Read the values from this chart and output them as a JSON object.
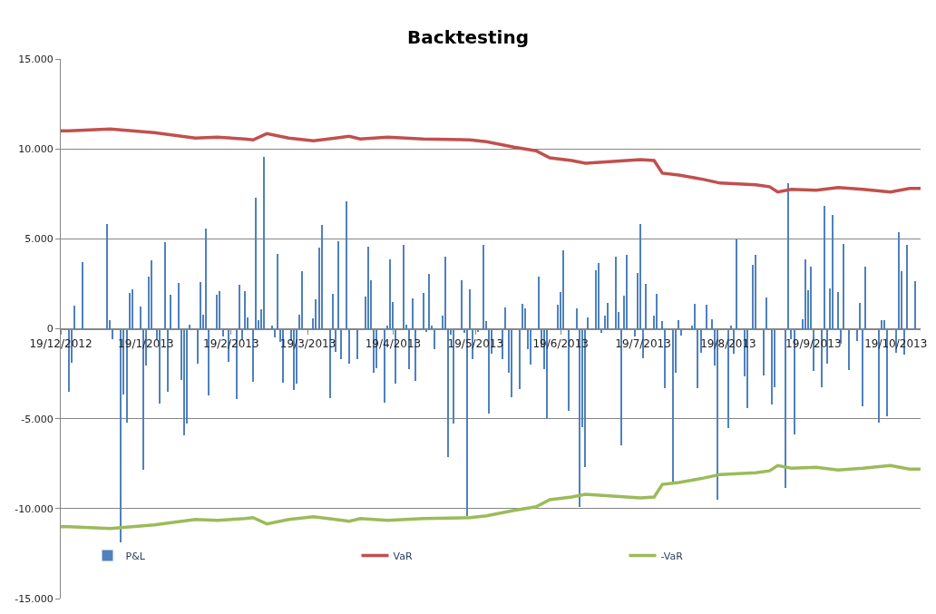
{
  "chart_data": {
    "type": "bar",
    "title": "Backtesting",
    "xlim": [
      "2012-12-19",
      "2013-10-28"
    ],
    "xticks": [
      {
        "value": "2012-12-19",
        "label": "19/12/2012"
      },
      {
        "value": "2013-01-19",
        "label": "19/1/2013"
      },
      {
        "value": "2013-02-19",
        "label": "19/2/2013"
      },
      {
        "value": "2013-03-19",
        "label": "19/3/2013"
      },
      {
        "value": "2013-04-19",
        "label": "19/4/2013"
      },
      {
        "value": "2013-05-19",
        "label": "19/5/2013"
      },
      {
        "value": "2013-06-19",
        "label": "19/6/2013"
      },
      {
        "value": "2013-07-19",
        "label": "19/7/2013"
      },
      {
        "value": "2013-08-19",
        "label": "19/8/2013"
      },
      {
        "value": "2013-09-19",
        "label": "19/9/2013"
      },
      {
        "value": "2013-10-19",
        "label": "19/10/2013"
      }
    ],
    "ylim": [
      -15000,
      15000
    ],
    "yticks": [
      {
        "value": -15000,
        "label": "-15.000"
      },
      {
        "value": -10000,
        "label": "-10.000"
      },
      {
        "value": -5000,
        "label": "-5.000"
      },
      0,
      {
        "value": 5000,
        "label": "5.000"
      },
      {
        "value": 10000,
        "label": "10.000"
      },
      {
        "value": 15000,
        "label": "15.000"
      }
    ],
    "grid": "y",
    "legend": "bottom",
    "series": [
      {
        "name": "P&L",
        "color": "#4f81bd",
        "x": [
          "2012-12-22",
          "2012-12-23",
          "2012-12-24",
          "2012-12-27",
          "2013-01-05",
          "2013-01-06",
          "2013-01-07",
          "2013-01-10",
          "2013-01-11",
          "2013-01-12",
          "2013-01-13",
          "2013-01-14",
          "2013-01-17",
          "2013-01-18",
          "2013-01-19",
          "2013-01-20",
          "2013-01-21",
          "2013-01-23",
          "2013-01-24",
          "2013-01-26",
          "2013-01-27",
          "2013-01-28",
          "2013-01-31",
          "2013-02-01",
          "2013-02-02",
          "2013-02-03",
          "2013-02-04",
          "2013-02-07",
          "2013-02-08",
          "2013-02-09",
          "2013-02-10",
          "2013-02-11",
          "2013-02-14",
          "2013-02-15",
          "2013-02-16",
          "2013-02-18",
          "2013-02-21",
          "2013-02-22",
          "2013-02-23",
          "2013-02-24",
          "2013-02-25",
          "2013-02-27",
          "2013-02-28",
          "2013-03-01",
          "2013-03-02",
          "2013-03-03",
          "2013-03-06",
          "2013-03-07",
          "2013-03-08",
          "2013-03-09",
          "2013-03-10",
          "2013-03-13",
          "2013-03-14",
          "2013-03-15",
          "2013-03-16",
          "2013-03-17",
          "2013-03-21",
          "2013-03-22",
          "2013-03-23",
          "2013-03-24",
          "2013-03-27",
          "2013-03-28",
          "2013-03-29",
          "2013-03-30",
          "2013-03-31",
          "2013-04-02",
          "2013-04-03",
          "2013-04-06",
          "2013-04-09",
          "2013-04-10",
          "2013-04-11",
          "2013-04-12",
          "2013-04-13",
          "2013-04-16",
          "2013-04-17",
          "2013-04-18",
          "2013-04-19",
          "2013-04-20",
          "2013-04-23",
          "2013-04-24",
          "2013-04-25",
          "2013-04-26",
          "2013-04-27",
          "2013-04-30",
          "2013-05-01",
          "2013-05-02",
          "2013-05-03",
          "2013-05-04",
          "2013-05-07",
          "2013-05-08",
          "2013-05-09",
          "2013-05-10",
          "2013-05-11",
          "2013-05-14",
          "2013-05-15",
          "2013-05-16",
          "2013-05-17",
          "2013-05-18",
          "2013-05-20",
          "2013-05-22",
          "2013-05-23",
          "2013-05-24",
          "2013-05-25",
          "2013-05-29",
          "2013-05-30",
          "2013-05-31",
          "2013-06-01",
          "2013-06-04",
          "2013-06-05",
          "2013-06-06",
          "2013-06-07",
          "2013-06-08",
          "2013-06-11",
          "2013-06-12",
          "2013-06-13",
          "2013-06-14",
          "2013-06-18",
          "2013-06-19",
          "2013-06-20",
          "2013-06-22",
          "2013-06-25",
          "2013-06-26",
          "2013-06-27",
          "2013-06-28",
          "2013-06-29",
          "2013-07-02",
          "2013-07-03",
          "2013-07-04",
          "2013-07-05",
          "2013-07-06",
          "2013-07-09",
          "2013-07-10",
          "2013-07-11",
          "2013-07-12",
          "2013-07-13",
          "2013-07-16",
          "2013-07-17",
          "2013-07-18",
          "2013-07-19",
          "2013-07-20",
          "2013-07-23",
          "2013-07-24",
          "2013-07-26",
          "2013-07-27",
          "2013-07-30",
          "2013-07-31",
          "2013-08-01",
          "2013-08-02",
          "2013-08-06",
          "2013-08-07",
          "2013-08-08",
          "2013-08-09",
          "2013-08-11",
          "2013-08-13",
          "2013-08-14",
          "2013-08-15",
          "2013-08-19",
          "2013-08-20",
          "2013-08-21",
          "2013-08-22",
          "2013-08-25",
          "2013-08-26",
          "2013-08-28",
          "2013-08-29",
          "2013-09-01",
          "2013-09-02",
          "2013-09-04",
          "2013-09-05",
          "2013-09-09",
          "2013-09-10",
          "2013-09-11",
          "2013-09-12",
          "2013-09-15",
          "2013-09-16",
          "2013-09-17",
          "2013-09-18",
          "2013-09-19",
          "2013-09-22",
          "2013-09-23",
          "2013-09-24",
          "2013-09-25",
          "2013-09-26",
          "2013-09-28",
          "2013-09-29",
          "2013-09-30",
          "2013-10-02",
          "2013-10-05",
          "2013-10-06",
          "2013-10-07",
          "2013-10-08",
          "2013-10-13",
          "2013-10-14",
          "2013-10-15",
          "2013-10-16",
          "2013-10-19",
          "2013-10-20",
          "2013-10-21",
          "2013-10-22",
          "2013-10-23",
          "2013-10-26"
        ],
        "values": [
          -3500,
          -1900,
          1300,
          3700,
          5800,
          460,
          -580,
          -11850,
          -3630,
          -5230,
          1980,
          2200,
          1220,
          -7850,
          -2060,
          2900,
          3830,
          -580,
          -4160,
          4820,
          -3500,
          1900,
          2560,
          -2850,
          -5900,
          -5250,
          210,
          -1930,
          2600,
          780,
          5560,
          -3700,
          1900,
          2100,
          -450,
          -1860,
          -3900,
          2440,
          -580,
          2100,
          610,
          -2940,
          7310,
          460,
          1070,
          9540,
          170,
          -460,
          4160,
          -740,
          -3000,
          -660,
          -3420,
          -3050,
          790,
          3220,
          580,
          1650,
          4500,
          5780,
          -3880,
          1950,
          -1270,
          4870,
          -1700,
          7060,
          -1930,
          -1700,
          1780,
          4540,
          2690,
          -2430,
          -2180,
          -4130,
          170,
          3880,
          1490,
          -3050,
          4650,
          210,
          -2230,
          1680,
          -2890,
          2010,
          -200,
          3050,
          200,
          -1110,
          710,
          3990,
          -7150,
          -330,
          -5250,
          2690,
          -250,
          -10400,
          2200,
          -1700,
          -170,
          4650,
          410,
          -4700,
          -1400,
          -1700,
          1190,
          -2440,
          -3800,
          -3350,
          1370,
          1120,
          -1110,
          -1980,
          2920,
          -990,
          -2230,
          -5030,
          1320,
          2030,
          4340,
          -4540,
          1120,
          -9900,
          -5450,
          -7710,
          610,
          3270,
          3660,
          -210,
          710,
          1440,
          3990,
          910,
          -6470,
          1820,
          4090,
          -410,
          3090,
          5830,
          -1650,
          2510,
          710,
          1950,
          410,
          -3300,
          -8550,
          -2440,
          500,
          -380,
          170,
          1400,
          -3300,
          -1320,
          1320,
          540,
          -2030,
          -9520,
          -5530,
          170,
          -1400,
          4980,
          -2670,
          -4420,
          3580,
          4130,
          -2590,
          1730,
          -4210,
          -3270,
          -8860,
          8090,
          -580,
          -5890,
          540,
          3840,
          2150,
          3430,
          -2340,
          -3270,
          6850,
          -1930,
          2260,
          6350,
          2060,
          -830,
          4700,
          -2280,
          -660,
          1440,
          -4320,
          3430,
          -5230,
          460,
          460,
          -4870,
          -1320,
          5360,
          3220,
          -1450,
          4650,
          2640
        ]
      },
      {
        "name": "VaR",
        "type": "line",
        "color": "#c0504d",
        "x": [
          "2012-12-19",
          "2012-12-22",
          "2013-01-06",
          "2013-01-22",
          "2013-02-06",
          "2013-02-14",
          "2013-02-24",
          "2013-02-27",
          "2013-03-04",
          "2013-03-12",
          "2013-03-21",
          "2013-03-29",
          "2013-04-03",
          "2013-04-07",
          "2013-04-17",
          "2013-04-30",
          "2013-05-17",
          "2013-05-23",
          "2013-06-02",
          "2013-06-10",
          "2013-06-15",
          "2013-06-23",
          "2013-06-28",
          "2013-07-08",
          "2013-07-18",
          "2013-07-23",
          "2013-07-26",
          "2013-08-01",
          "2013-08-10",
          "2013-08-16",
          "2013-08-29",
          "2013-09-03",
          "2013-09-06",
          "2013-09-11",
          "2013-09-20",
          "2013-09-28",
          "2013-10-07",
          "2013-10-17",
          "2013-10-24",
          "2013-10-28"
        ],
        "values": [
          11000,
          11000,
          11100,
          10900,
          10600,
          10650,
          10550,
          10500,
          10850,
          10600,
          10450,
          10600,
          10700,
          10550,
          10650,
          10550,
          10500,
          10400,
          10100,
          9900,
          9500,
          9350,
          9200,
          9300,
          9400,
          9350,
          8650,
          8550,
          8300,
          8100,
          8000,
          7900,
          7600,
          7750,
          7700,
          7850,
          7750,
          7600,
          7800,
          7800
        ]
      },
      {
        "name": "-VaR",
        "type": "line",
        "color": "#9bbb59",
        "x": [
          "2012-12-19",
          "2012-12-22",
          "2013-01-06",
          "2013-01-22",
          "2013-02-06",
          "2013-02-14",
          "2013-02-24",
          "2013-02-27",
          "2013-03-04",
          "2013-03-12",
          "2013-03-21",
          "2013-03-29",
          "2013-04-03",
          "2013-04-07",
          "2013-04-17",
          "2013-04-30",
          "2013-05-17",
          "2013-05-23",
          "2013-06-02",
          "2013-06-10",
          "2013-06-15",
          "2013-06-23",
          "2013-06-28",
          "2013-07-08",
          "2013-07-18",
          "2013-07-23",
          "2013-07-26",
          "2013-08-01",
          "2013-08-10",
          "2013-08-16",
          "2013-08-29",
          "2013-09-03",
          "2013-09-06",
          "2013-09-11",
          "2013-09-20",
          "2013-09-28",
          "2013-10-07",
          "2013-10-17",
          "2013-10-24",
          "2013-10-28"
        ],
        "values": [
          -11000,
          -11000,
          -11100,
          -10900,
          -10600,
          -10650,
          -10550,
          -10500,
          -10850,
          -10600,
          -10450,
          -10600,
          -10700,
          -10550,
          -10650,
          -10550,
          -10500,
          -10400,
          -10100,
          -9900,
          -9500,
          -9350,
          -9200,
          -9300,
          -9400,
          -9350,
          -8650,
          -8550,
          -8300,
          -8100,
          -8000,
          -7900,
          -7600,
          -7750,
          -7700,
          -7850,
          -7750,
          -7600,
          -7800,
          -7800
        ]
      }
    ]
  }
}
